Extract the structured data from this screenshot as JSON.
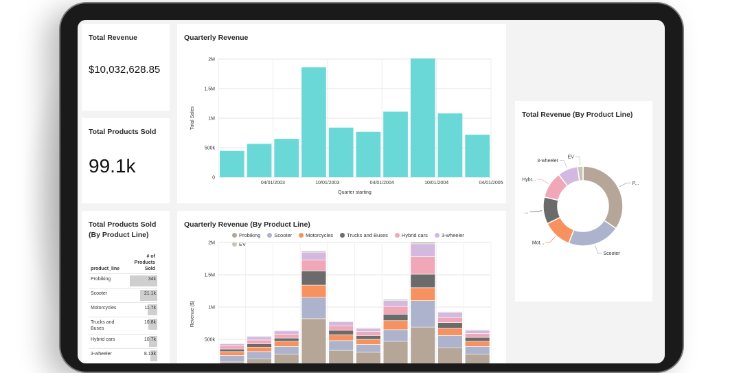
{
  "kpis": {
    "total_revenue": {
      "title": "Total Revenue",
      "value": "$10,032,628.85"
    },
    "total_products": {
      "title": "Total Products Sold",
      "value": "99.1k"
    }
  },
  "quarterly_revenue": {
    "title": "Quarterly Revenue",
    "chart_data": {
      "type": "bar",
      "xlabel": "Quarter starting",
      "ylabel": "Total Sales",
      "ylim": [
        0,
        2000000
      ],
      "yticks": [
        "0",
        "500k",
        "1M",
        "1.5M",
        "2M"
      ],
      "xtick_labels": [
        "04/01/2003",
        "10/01/2003",
        "04/01/2004",
        "10/01/2004",
        "04/01/2005"
      ],
      "values": [
        445000,
        565000,
        650000,
        1860000,
        840000,
        770000,
        1110000,
        2010000,
        1080000,
        720000
      ],
      "color": "#6bd8d8"
    }
  },
  "product_table": {
    "title": "Total Products Sold (By Product Line)",
    "col1": "product_line",
    "col2": "# of Products Sold",
    "rows": [
      {
        "label": "Probiking",
        "value": "34k",
        "fraction": 1.0
      },
      {
        "label": "Scooter",
        "value": "21.1k",
        "fraction": 0.62
      },
      {
        "label": "Motorcycles",
        "value": "11.7k",
        "fraction": 0.34
      },
      {
        "label": "Trucks and Buses",
        "value": "10.8k",
        "fraction": 0.32
      },
      {
        "label": "Hybrid cars",
        "value": "10.7k",
        "fraction": 0.31
      },
      {
        "label": "3-wheeler",
        "value": "8.13k",
        "fraction": 0.24
      }
    ]
  },
  "stacked": {
    "title": "Quarterly Revenue (By Product Line)",
    "chart_data": {
      "type": "bar",
      "stacked": true,
      "ylabel": "Revenue ($)",
      "ylim": [
        0,
        2000000
      ],
      "yticks": [
        "500k",
        "1M",
        "1.5M",
        "2M"
      ],
      "series": [
        {
          "name": "Probiking",
          "color": "#b5a698",
          "values": [
            150000,
            200000,
            270000,
            820000,
            330000,
            300000,
            470000,
            690000,
            370000,
            270000
          ]
        },
        {
          "name": "Scooter",
          "color": "#adb3cc",
          "values": [
            100000,
            110000,
            120000,
            330000,
            150000,
            120000,
            180000,
            410000,
            190000,
            120000
          ]
        },
        {
          "name": "Motorcycles",
          "color": "#f79260",
          "values": [
            60000,
            70000,
            80000,
            190000,
            90000,
            80000,
            140000,
            200000,
            110000,
            80000
          ]
        },
        {
          "name": "Trucks and Buses",
          "color": "#6b6b6b",
          "values": [
            40000,
            50000,
            50000,
            220000,
            70000,
            60000,
            100000,
            210000,
            90000,
            60000
          ]
        },
        {
          "name": "Hybrid cars",
          "color": "#f0a8b8",
          "values": [
            50000,
            60000,
            60000,
            170000,
            70000,
            60000,
            120000,
            270000,
            80000,
            60000
          ]
        },
        {
          "name": "3-wheeler",
          "color": "#d3b8e0",
          "values": [
            30000,
            50000,
            50000,
            120000,
            60000,
            50000,
            90000,
            200000,
            80000,
            50000
          ]
        },
        {
          "name": "EV",
          "color": "#c8c4b6",
          "values": [
            10000,
            10000,
            10000,
            20000,
            10000,
            10000,
            20000,
            30000,
            10000,
            10000
          ]
        }
      ]
    }
  },
  "donut": {
    "title": "Total Revenue (By Product Line)",
    "chart_data": {
      "type": "pie",
      "donut": true,
      "slices": [
        {
          "label": "P...",
          "value": 34,
          "color": "#b5a698"
        },
        {
          "label": "Scooter",
          "value": 21.1,
          "color": "#adb3cc"
        },
        {
          "label": "Mot...",
          "value": 11.7,
          "color": "#f79260"
        },
        {
          "label": "...",
          "value": 10.8,
          "color": "#6b6b6b"
        },
        {
          "label": "Hybr...",
          "value": 10.7,
          "color": "#f0a8b8"
        },
        {
          "label": "3-wheeler",
          "value": 8.13,
          "color": "#d3b8e0"
        },
        {
          "label": "EV",
          "value": 2.2,
          "color": "#c8c4b6"
        }
      ]
    }
  }
}
